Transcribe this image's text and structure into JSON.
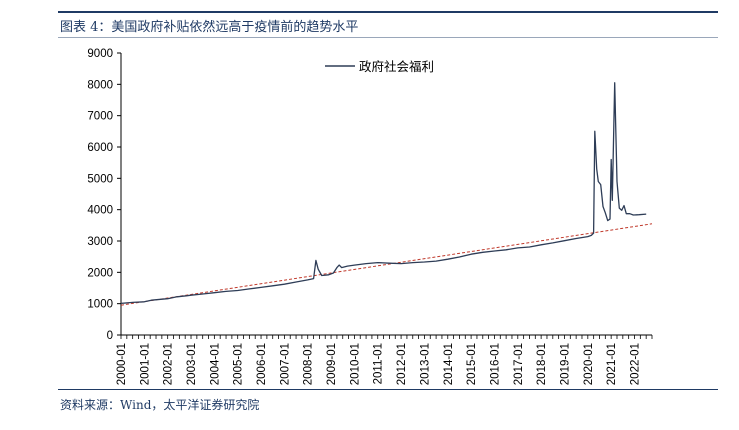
{
  "figure": {
    "title": "图表 4：美国政府补贴依然远高于疫情前的趋势水平",
    "source": "资料来源：Wind，太平洋证券研究院"
  },
  "chart_data": {
    "type": "line",
    "title": "",
    "xlabel": "",
    "ylabel": "",
    "ylim": [
      0,
      9000
    ],
    "yticks": [
      0,
      1000,
      2000,
      3000,
      4000,
      5000,
      6000,
      7000,
      8000,
      9000
    ],
    "xlim": [
      2000.0,
      2022.75
    ],
    "xtick_labels": [
      "2000-01",
      "2001-01",
      "2002-01",
      "2003-01",
      "2004-01",
      "2005-01",
      "2006-01",
      "2007-01",
      "2008-01",
      "2009-01",
      "2010-01",
      "2011-01",
      "2012-01",
      "2013-01",
      "2014-01",
      "2015-01",
      "2016-01",
      "2017-01",
      "2018-01",
      "2019-01",
      "2020-01",
      "2021-01",
      "2022-01"
    ],
    "legend": {
      "position": "top-center"
    },
    "grid": false,
    "colors": {
      "series": "#2e3d57",
      "trend": "#c0392b"
    },
    "series": [
      {
        "name": "政府社会福利",
        "style": "solid",
        "points": [
          [
            2000.0,
            1010
          ],
          [
            2000.5,
            1040
          ],
          [
            2001.0,
            1060
          ],
          [
            2001.3,
            1110
          ],
          [
            2001.7,
            1140
          ],
          [
            2002.0,
            1160
          ],
          [
            2002.4,
            1220
          ],
          [
            2002.8,
            1250
          ],
          [
            2003.0,
            1270
          ],
          [
            2003.5,
            1310
          ],
          [
            2004.0,
            1350
          ],
          [
            2004.5,
            1390
          ],
          [
            2005.0,
            1420
          ],
          [
            2005.5,
            1470
          ],
          [
            2006.0,
            1520
          ],
          [
            2006.5,
            1570
          ],
          [
            2007.0,
            1620
          ],
          [
            2007.5,
            1690
          ],
          [
            2008.0,
            1760
          ],
          [
            2008.25,
            1800
          ],
          [
            2008.35,
            2380
          ],
          [
            2008.45,
            2100
          ],
          [
            2008.6,
            1900
          ],
          [
            2008.9,
            1920
          ],
          [
            2009.1,
            1980
          ],
          [
            2009.25,
            2150
          ],
          [
            2009.35,
            2230
          ],
          [
            2009.45,
            2150
          ],
          [
            2009.7,
            2200
          ],
          [
            2010.0,
            2230
          ],
          [
            2010.5,
            2280
          ],
          [
            2011.0,
            2310
          ],
          [
            2011.5,
            2290
          ],
          [
            2012.0,
            2280
          ],
          [
            2012.5,
            2310
          ],
          [
            2013.0,
            2330
          ],
          [
            2013.5,
            2360
          ],
          [
            2014.0,
            2420
          ],
          [
            2014.5,
            2490
          ],
          [
            2015.0,
            2580
          ],
          [
            2015.5,
            2640
          ],
          [
            2016.0,
            2680
          ],
          [
            2016.5,
            2720
          ],
          [
            2017.0,
            2780
          ],
          [
            2017.5,
            2810
          ],
          [
            2018.0,
            2880
          ],
          [
            2018.5,
            2940
          ],
          [
            2019.0,
            3010
          ],
          [
            2019.5,
            3080
          ],
          [
            2020.0,
            3140
          ],
          [
            2020.15,
            3180
          ],
          [
            2020.25,
            3250
          ],
          [
            2020.3,
            6500
          ],
          [
            2020.38,
            5300
          ],
          [
            2020.45,
            4900
          ],
          [
            2020.55,
            4800
          ],
          [
            2020.65,
            4100
          ],
          [
            2020.75,
            3900
          ],
          [
            2020.85,
            3650
          ],
          [
            2020.95,
            3700
          ],
          [
            2021.0,
            5600
          ],
          [
            2021.05,
            4300
          ],
          [
            2021.15,
            8050
          ],
          [
            2021.25,
            4900
          ],
          [
            2021.35,
            4050
          ],
          [
            2021.45,
            3980
          ],
          [
            2021.55,
            4130
          ],
          [
            2021.65,
            3870
          ],
          [
            2021.8,
            3870
          ],
          [
            2021.95,
            3830
          ],
          [
            2022.2,
            3840
          ],
          [
            2022.5,
            3860
          ]
        ]
      },
      {
        "style": "dashed",
        "points": [
          [
            2000.0,
            950
          ],
          [
            2022.75,
            3550
          ]
        ]
      }
    ]
  }
}
